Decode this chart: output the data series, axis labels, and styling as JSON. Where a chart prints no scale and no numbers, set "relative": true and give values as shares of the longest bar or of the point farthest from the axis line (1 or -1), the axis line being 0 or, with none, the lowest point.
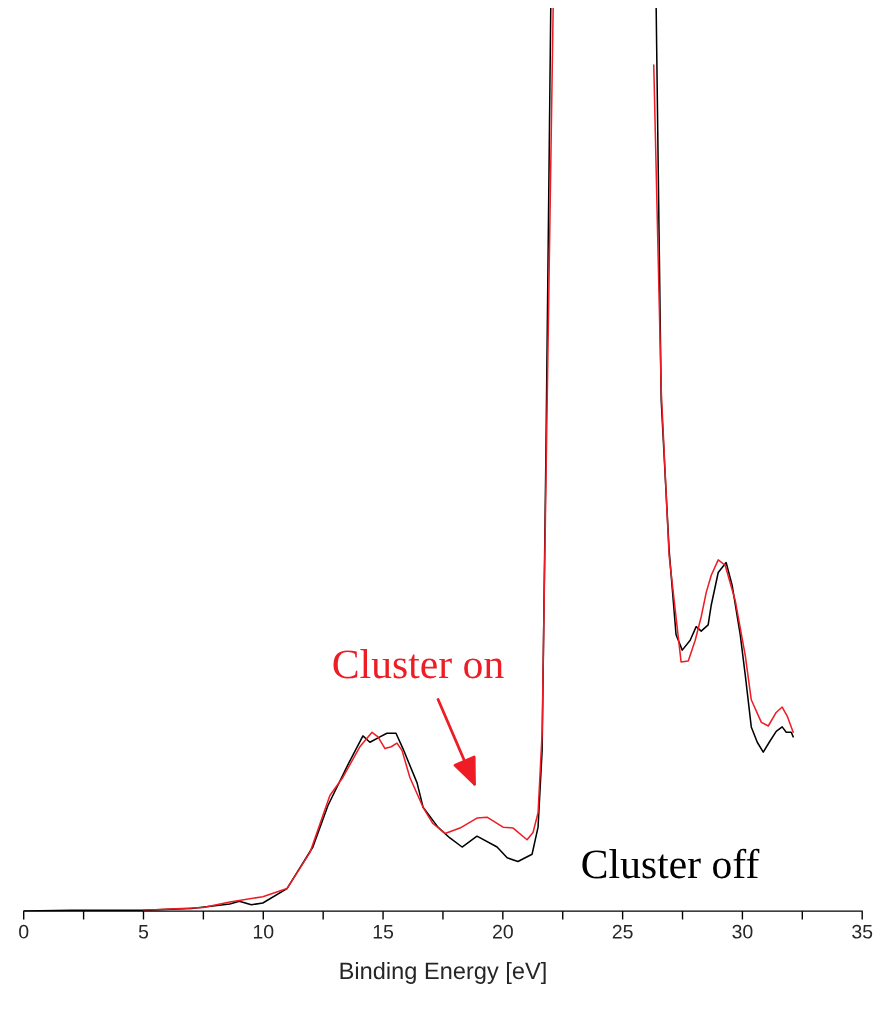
{
  "chart_data": {
    "type": "line",
    "relative": true,
    "xlabel": "Binding Energy [eV]",
    "xlim": [
      0,
      35
    ],
    "xticks": [
      0,
      {
        "value": 2.5,
        "label": null
      },
      5,
      {
        "value": 7.5,
        "label": null
      },
      10,
      {
        "value": 12.5,
        "label": null
      },
      15,
      {
        "value": 17.5,
        "label": null
      },
      20,
      {
        "value": 22.5,
        "label": null
      },
      25,
      {
        "value": 27.5,
        "label": null
      },
      30,
      {
        "value": 32.5,
        "label": null
      },
      35
    ],
    "grid": false,
    "legend": false,
    "marker": "none",
    "line_style": "solid",
    "series": [
      {
        "color": "#000000",
        "x": [
          0,
          2,
          5,
          7,
          8.6,
          9.0,
          9.5,
          9.98,
          10.99,
          12.07,
          12.7,
          13.53,
          14.16,
          14.45,
          14.87,
          15.16,
          15.54,
          15.83,
          16.42,
          16.67,
          17.29,
          17.79,
          18.3,
          18.92,
          19.76,
          20.18,
          20.63,
          21.22,
          21.47,
          21.64,
          21.8,
          22.0,
          24,
          26.4,
          26.61,
          26.94,
          27.23,
          27.49,
          27.82,
          28.07,
          28.28,
          28.57,
          28.7,
          28.99,
          29.32,
          29.57,
          29.91,
          30.12,
          30.37,
          30.62,
          30.87,
          31.12,
          31.41,
          31.66,
          31.83,
          32.04,
          32.12
        ],
        "values": [
          0,
          0.001,
          0.001,
          0.003,
          0.008,
          0.011,
          0.007,
          0.009,
          0.025,
          0.071,
          0.117,
          0.162,
          0.194,
          0.187,
          0.193,
          0.197,
          0.197,
          0.18,
          0.142,
          0.115,
          0.093,
          0.081,
          0.071,
          0.083,
          0.071,
          0.059,
          0.055,
          0.063,
          0.093,
          0.178,
          0.51,
          1,
          null,
          1,
          0.566,
          0.4,
          0.306,
          0.289,
          0.3,
          0.315,
          0.31,
          0.317,
          0.339,
          0.375,
          0.386,
          0.361,
          0.306,
          0.261,
          0.204,
          0.187,
          0.176,
          0.187,
          0.199,
          0.204,
          0.198,
          0.198,
          0.193
        ]
      },
      {
        "color": "#ee1c25",
        "x": [
          5,
          7.5,
          8.6,
          9.98,
          10.99,
          11.95,
          12.78,
          13.32,
          14.03,
          14.54,
          14.79,
          15.08,
          15.34,
          15.58,
          15.79,
          16.12,
          16.67,
          17.08,
          17.59,
          18.21,
          18.92,
          19.34,
          20.01,
          20.43,
          21.01,
          21.26,
          21.47,
          21.64,
          22.1,
          24,
          26.3,
          26.61,
          26.94,
          27.44,
          27.74,
          28.03,
          28.28,
          28.49,
          28.7,
          28.99,
          29.28,
          29.7,
          30.12,
          30.37,
          30.79,
          31.08,
          31.41,
          31.66,
          31.87,
          32.12
        ],
        "values": [
          0.001,
          0.004,
          0.01,
          0.016,
          0.025,
          0.065,
          0.128,
          0.148,
          0.182,
          0.198,
          0.193,
          0.18,
          0.182,
          0.186,
          0.178,
          0.148,
          0.115,
          0.097,
          0.086,
          0.092,
          0.103,
          0.104,
          0.093,
          0.092,
          0.079,
          0.087,
          0.109,
          0.197,
          1,
          null,
          0.937,
          0.577,
          0.394,
          0.276,
          0.277,
          0.3,
          0.326,
          0.353,
          0.372,
          0.389,
          0.383,
          0.344,
          0.283,
          0.234,
          0.209,
          0.205,
          0.22,
          0.226,
          0.216,
          0.198
        ]
      }
    ],
    "annotations": [
      "Cluster off",
      "Cluster on"
    ]
  }
}
